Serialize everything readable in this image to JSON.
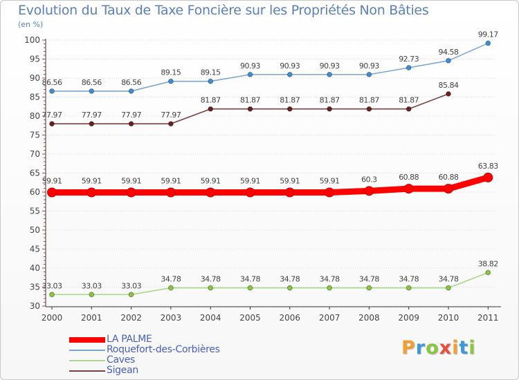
{
  "title": "Evolution du Taux de Taxe Foncière sur les Propriétés Non Bâties",
  "unit": "(en %)",
  "logo": {
    "text": "Proxiti",
    "letter_colors": [
      "#f0a030",
      "#3a9ad9",
      "#8cc63f",
      "#e94e3c",
      "#f0a030",
      "#3a9ad9",
      "#8cc63f"
    ]
  },
  "chart_data": {
    "type": "line",
    "title": "Evolution du Taux de Taxe Foncière sur les Propriétés Non Bâties",
    "ylabel": "(en %)",
    "xlabel": "",
    "ylim": [
      30,
      100
    ],
    "yticks": [
      30,
      35,
      40,
      45,
      50,
      55,
      60,
      65,
      70,
      75,
      80,
      85,
      90,
      95,
      100
    ],
    "categories": [
      "2000",
      "2001",
      "2002",
      "2003",
      "2004",
      "2005",
      "2006",
      "2007",
      "2008",
      "2009",
      "2010",
      "2011"
    ],
    "series": [
      {
        "name": "LA PALME",
        "color": "#ff0000",
        "marker_color": "#ff0000",
        "emphasis": true,
        "values": [
          59.91,
          59.91,
          59.91,
          59.91,
          59.91,
          59.91,
          59.91,
          59.91,
          60.3,
          60.88,
          60.88,
          63.83
        ],
        "labels": [
          "59.91",
          "59.91",
          "59.91",
          "59.91",
          "59.91",
          "59.91",
          "59.91",
          "59.91",
          "60.3",
          "60.88",
          "60.88",
          "63.83"
        ]
      },
      {
        "name": "Roquefort-des-Corbières",
        "color": "#7aa6d6",
        "marker_color": "#3f8fd0",
        "emphasis": false,
        "values": [
          86.56,
          86.56,
          86.56,
          89.15,
          89.15,
          90.93,
          90.93,
          90.93,
          90.93,
          92.73,
          94.58,
          99.17
        ],
        "labels": [
          "86.56",
          "86.56",
          "86.56",
          "89.15",
          "89.15",
          "90.93",
          "90.93",
          "90.93",
          "90.93",
          "92.73",
          "94.58",
          "99.17"
        ]
      },
      {
        "name": "Caves",
        "color": "#a8d888",
        "marker_color": "#8cc63f",
        "emphasis": false,
        "values": [
          33.03,
          33.03,
          33.03,
          34.78,
          34.78,
          34.78,
          34.78,
          34.78,
          34.78,
          34.78,
          34.78,
          38.82
        ],
        "labels": [
          "33.03",
          "33.03",
          "33.03",
          "34.78",
          "34.78",
          "34.78",
          "34.78",
          "34.78",
          "34.78",
          "34.78",
          "34.78",
          "38.82"
        ]
      },
      {
        "name": "Sigean",
        "color": "#7a3f3f",
        "marker_color": "#6b1f1f",
        "emphasis": false,
        "values": [
          77.97,
          77.97,
          77.97,
          77.97,
          81.87,
          81.87,
          81.87,
          81.87,
          81.87,
          81.87,
          85.84,
          null
        ],
        "labels": [
          "77.97",
          "77.97",
          "77.97",
          "77.97",
          "81.87",
          "81.87",
          "81.87",
          "81.87",
          "81.87",
          "81.87",
          "85.84",
          null
        ]
      }
    ],
    "legend_position": "bottom-left"
  }
}
